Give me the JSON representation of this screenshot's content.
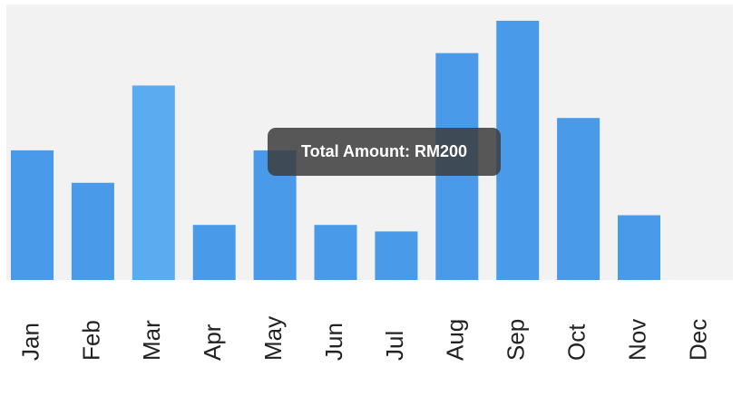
{
  "chart_data": {
    "type": "bar",
    "title": "",
    "xlabel": "",
    "ylabel": "",
    "categories": [
      "Jan",
      "Feb",
      "Mar",
      "Apr",
      "May",
      "Jun",
      "Jul",
      "Aug",
      "Sep",
      "Oct",
      "Nov",
      "Dec"
    ],
    "values": [
      200,
      150,
      300,
      85,
      200,
      85,
      75,
      350,
      400,
      250,
      100,
      0
    ],
    "ylim": [
      0,
      425
    ],
    "grid": false,
    "colors": {
      "bar": "#4a9aea",
      "bar_highlight": "#5aabf0",
      "plot_background": "#f2f2f2"
    },
    "highlighted_category": "Mar"
  },
  "tooltip": {
    "label": "Total Amount: RM200"
  }
}
